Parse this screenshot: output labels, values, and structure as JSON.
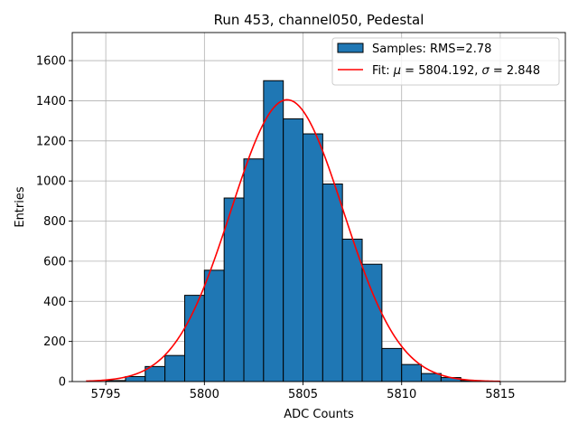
{
  "chart_data": {
    "type": "bar",
    "title": "Run 453, channel050, Pedestal",
    "xlabel": "ADC Counts",
    "ylabel": "Entries",
    "xlim": [
      5793.3,
      5818.3
    ],
    "ylim": [
      0,
      1740
    ],
    "xticks": [
      5795,
      5800,
      5805,
      5810,
      5815
    ],
    "yticks": [
      0,
      200,
      400,
      600,
      800,
      1000,
      1200,
      1400,
      1600
    ],
    "grid": true,
    "legend_position": "top-right",
    "bar_color": "#1f77b4",
    "fit_color": "#ff0000",
    "bins": [
      {
        "x0": 5795,
        "x1": 5796,
        "value": 5
      },
      {
        "x0": 5796,
        "x1": 5797,
        "value": 25
      },
      {
        "x0": 5797,
        "x1": 5798,
        "value": 75
      },
      {
        "x0": 5798,
        "x1": 5799,
        "value": 130
      },
      {
        "x0": 5799,
        "x1": 5800,
        "value": 430
      },
      {
        "x0": 5800,
        "x1": 5801,
        "value": 555
      },
      {
        "x0": 5801,
        "x1": 5802,
        "value": 915
      },
      {
        "x0": 5802,
        "x1": 5803,
        "value": 1110
      },
      {
        "x0": 5803,
        "x1": 5804,
        "value": 1500
      },
      {
        "x0": 5804,
        "x1": 5805,
        "value": 1310
      },
      {
        "x0": 5805,
        "x1": 5806,
        "value": 1235
      },
      {
        "x0": 5806,
        "x1": 5807,
        "value": 985
      },
      {
        "x0": 5807,
        "x1": 5808,
        "value": 710
      },
      {
        "x0": 5808,
        "x1": 5809,
        "value": 585
      },
      {
        "x0": 5809,
        "x1": 5810,
        "value": 165
      },
      {
        "x0": 5810,
        "x1": 5811,
        "value": 85
      },
      {
        "x0": 5811,
        "x1": 5812,
        "value": 40
      },
      {
        "x0": 5812,
        "x1": 5813,
        "value": 20
      },
      {
        "x0": 5813,
        "x1": 5814,
        "value": 5
      }
    ],
    "fit": {
      "mu": 5804.192,
      "sigma": 2.848,
      "amplitude": 1405,
      "x_range": [
        5794,
        5815
      ]
    },
    "legend": [
      {
        "kind": "bar",
        "label": "Samples: RMS=2.78"
      },
      {
        "kind": "line",
        "label_prefix": "Fit: ",
        "mu_symbol": "μ",
        "mu_text": " = 5804.192, ",
        "sigma_symbol": "σ",
        "sigma_text": " = 2.848"
      }
    ]
  }
}
